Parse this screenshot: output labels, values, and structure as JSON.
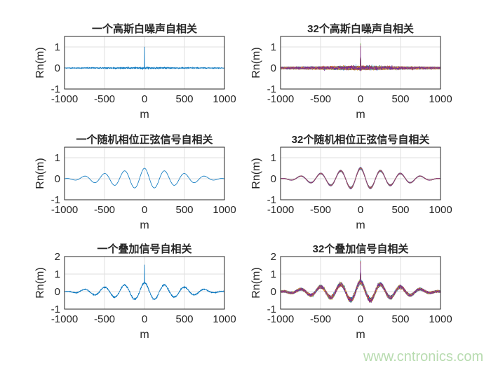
{
  "chart_data": [
    {
      "type": "line",
      "title": "一个高斯白噪声自相关",
      "xlabel": "m",
      "ylabel": "Rn(m)",
      "xlim": [
        -1000,
        1000
      ],
      "ylim": [
        -1,
        1.5
      ],
      "xticks": [
        "-1000",
        "-500",
        "0",
        "500",
        "1000"
      ],
      "yticks": [
        "-1",
        "0",
        "1"
      ],
      "grid": true,
      "n_traces": 1,
      "signal": {
        "spike_at_0": 1,
        "noise_std": 0.015,
        "sine_amplitude": 0,
        "sine_period": 250
      },
      "colors": [
        "#0072BD"
      ]
    },
    {
      "type": "line",
      "title": "32个高斯白噪声自相关",
      "xlabel": "m",
      "ylabel": "Rn(m)",
      "xlim": [
        -1000,
        1000
      ],
      "ylim": [
        -1,
        1.5
      ],
      "xticks": [
        "-1000",
        "-500",
        "0",
        "500",
        "1000"
      ],
      "yticks": [
        "-1",
        "0",
        "1"
      ],
      "grid": true,
      "n_traces": 32,
      "signal": {
        "spike_at_0": 1,
        "noise_std": 0.03,
        "sine_amplitude": 0,
        "sine_period": 250
      },
      "colors": [
        "#0072BD",
        "#D95319",
        "#EDB120",
        "#7E2F8E",
        "#77AC30",
        "#4DBEEE",
        "#A2142F"
      ]
    },
    {
      "type": "line",
      "title": "一个随机相位正弦信号自相关",
      "xlabel": "m",
      "ylabel": "Rn(m)",
      "xlim": [
        -1000,
        1000
      ],
      "ylim": [
        -1,
        1.5
      ],
      "xticks": [
        "-1000",
        "-500",
        "0",
        "500",
        "1000"
      ],
      "yticks": [
        "-1",
        "0",
        "1"
      ],
      "grid": true,
      "n_traces": 1,
      "signal": {
        "spike_at_0": 0,
        "noise_std": 0,
        "sine_amplitude": 0.5,
        "sine_period": 250
      },
      "colors": [
        "#0072BD"
      ]
    },
    {
      "type": "line",
      "title": "32个随机相位正弦信号自相关",
      "xlabel": "m",
      "ylabel": "Rn(m)",
      "xlim": [
        -1000,
        1000
      ],
      "ylim": [
        -1,
        1.5
      ],
      "xticks": [
        "-1000",
        "-500",
        "0",
        "500",
        "1000"
      ],
      "yticks": [
        "-1",
        "0",
        "1"
      ],
      "grid": true,
      "n_traces": 32,
      "signal": {
        "spike_at_0": 0,
        "noise_std": 0.004,
        "sine_amplitude": 0.5,
        "sine_period": 250
      },
      "colors": [
        "#0072BD",
        "#D95319",
        "#EDB120",
        "#7E2F8E",
        "#77AC30",
        "#4DBEEE",
        "#A2142F"
      ]
    },
    {
      "type": "line",
      "title": "一个叠加信号自相关",
      "xlabel": "m",
      "ylabel": "Rn(m)",
      "xlim": [
        -1000,
        1000
      ],
      "ylim": [
        -1,
        2
      ],
      "xticks": [
        "-1000",
        "-500",
        "0",
        "500",
        "1000"
      ],
      "yticks": [
        "-1",
        "0",
        "1",
        "2"
      ],
      "grid": true,
      "n_traces": 1,
      "signal": {
        "spike_at_0": 1,
        "noise_std": 0.02,
        "sine_amplitude": 0.5,
        "sine_period": 250
      },
      "colors": [
        "#0072BD"
      ]
    },
    {
      "type": "line",
      "title": "32个叠加信号自相关",
      "xlabel": "m",
      "ylabel": "Rn(m)",
      "xlim": [
        -1000,
        1000
      ],
      "ylim": [
        -1,
        2
      ],
      "xticks": [
        "-1000",
        "-500",
        "0",
        "500",
        "1000"
      ],
      "yticks": [
        "-1",
        "0",
        "1",
        "2"
      ],
      "grid": true,
      "n_traces": 32,
      "signal": {
        "spike_at_0": 1.1,
        "noise_std": 0.04,
        "sine_amplitude": 0.55,
        "sine_period": 250
      },
      "colors": [
        "#0072BD",
        "#D95319",
        "#EDB120",
        "#7E2F8E",
        "#77AC30",
        "#4DBEEE",
        "#A2142F"
      ]
    }
  ],
  "watermark": "www.cntronics.com"
}
